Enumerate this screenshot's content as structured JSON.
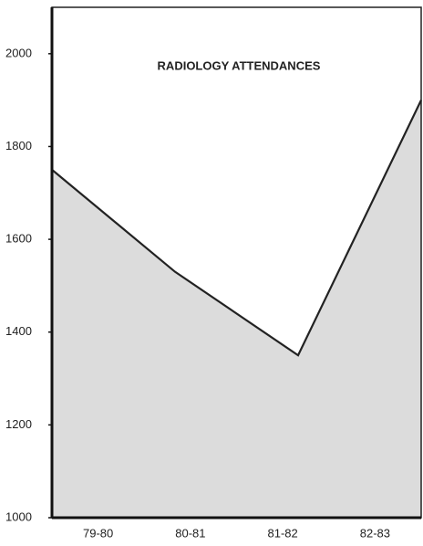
{
  "chart_data": {
    "type": "area",
    "title": "RADIOLOGY ATTENDANCES",
    "categories": [
      "79-80",
      "80-81",
      "81-82",
      "82-83"
    ],
    "values": [
      1750,
      1530,
      1350,
      1900
    ],
    "color": "#222222",
    "fill": "#dcdcdc",
    "ylim": [
      1000,
      2100
    ],
    "yticks": [
      1000,
      1200,
      1400,
      1600,
      1800,
      2000
    ]
  }
}
